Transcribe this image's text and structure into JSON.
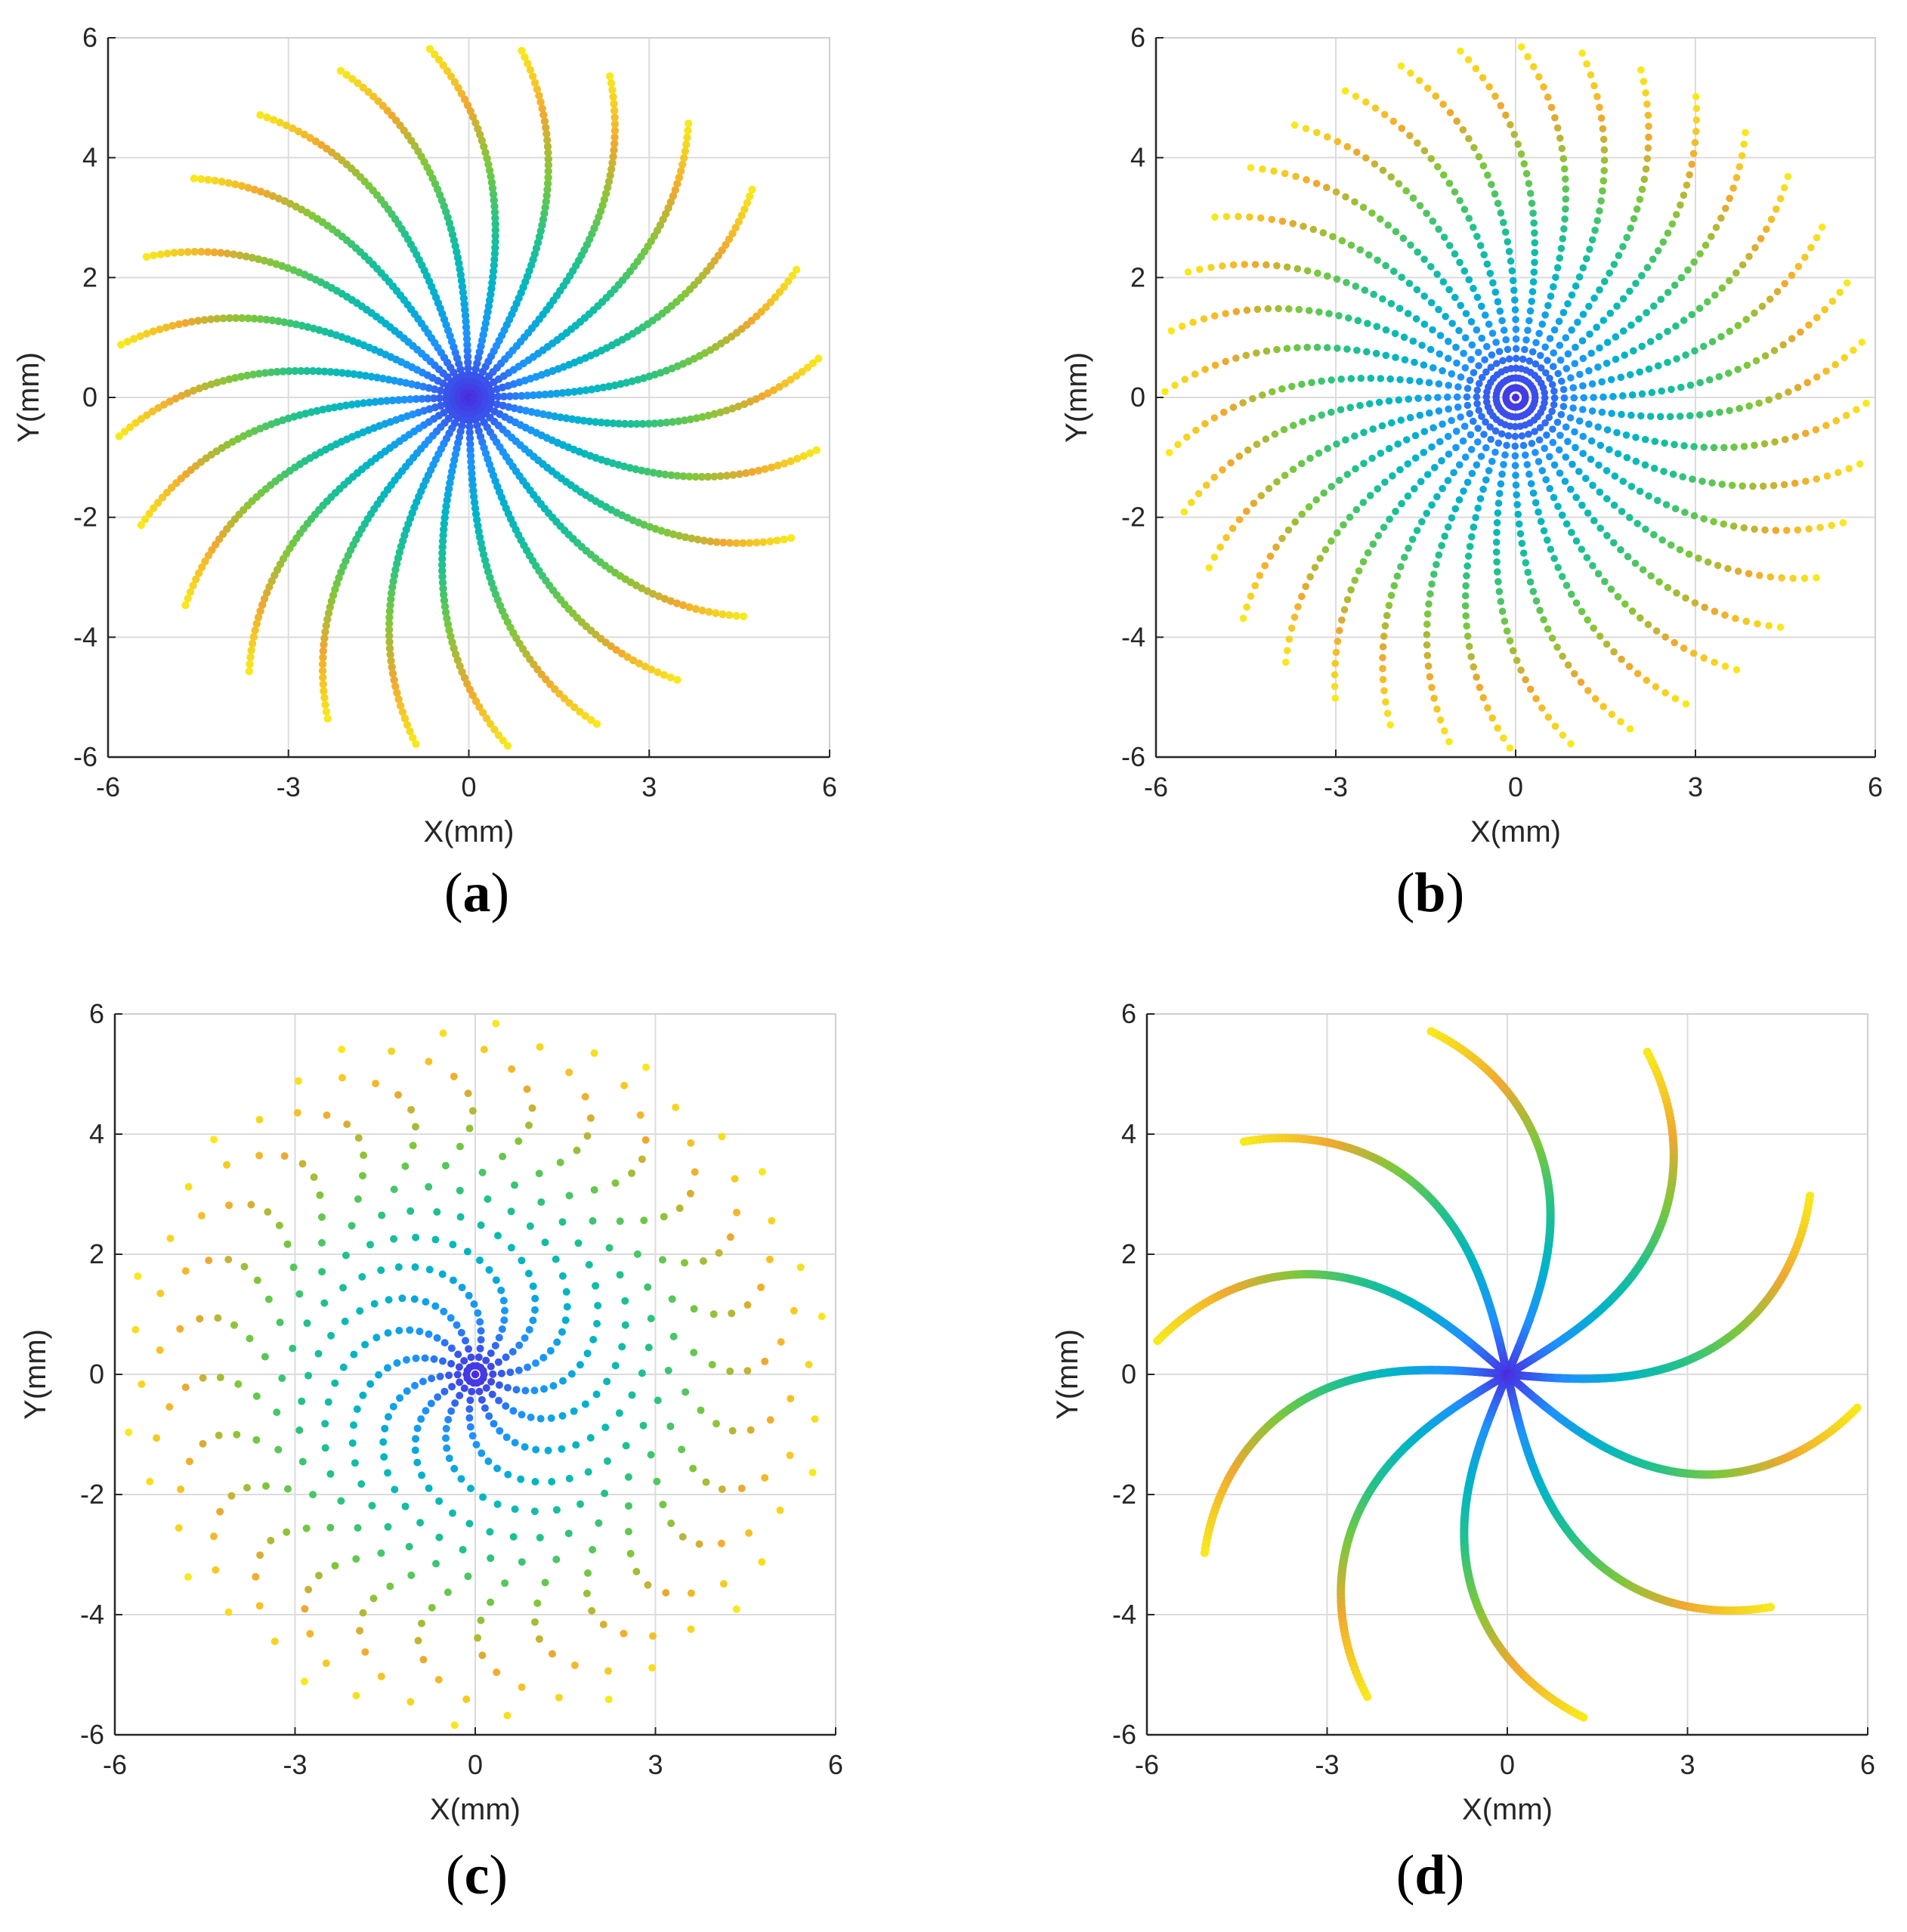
{
  "chart_data": [
    {
      "type": "scatter",
      "panel_label": "a",
      "xlabel": "X(mm)",
      "ylabel": "Y(mm)",
      "xlim": [
        -6,
        6
      ],
      "ylim": [
        -6,
        6
      ],
      "xticks": [
        -6,
        -3,
        0,
        3,
        6
      ],
      "yticks": [
        -6,
        -4,
        -2,
        0,
        2,
        4,
        6
      ],
      "grid": true,
      "pattern": {
        "kind": "spiral-arms",
        "arms": 24,
        "points_per_arm": 60,
        "max_radius_mm": 5.85,
        "twist_rad": 0.35,
        "first_arm_angle_deg": 1.3
      },
      "color_by": "radius",
      "colormap": [
        "#4a2be0",
        "#1e90ff",
        "#00b4c8",
        "#22c28a",
        "#7ac83c",
        "#f0a830",
        "#f8e81c"
      ]
    },
    {
      "type": "scatter",
      "panel_label": "b",
      "xlabel": "X(mm)",
      "ylabel": "Y(mm)",
      "xlim": [
        -6,
        6
      ],
      "ylim": [
        -6,
        6
      ],
      "xticks": [
        -6,
        -3,
        0,
        3,
        6
      ],
      "yticks": [
        -6,
        -4,
        -2,
        0,
        2,
        4,
        6
      ],
      "grid": true,
      "pattern": {
        "kind": "spiral-arms",
        "arms": 36,
        "points_per_arm": 36,
        "max_radius_mm": 5.85,
        "twist_rad": 0.35,
        "first_arm_angle_deg": -1.0
      },
      "color_by": "radius",
      "colormap": [
        "#4a2be0",
        "#1e90ff",
        "#00b4c8",
        "#22c28a",
        "#7ac83c",
        "#f0a830",
        "#f8e81c"
      ]
    },
    {
      "type": "scatter",
      "panel_label": "c",
      "xlabel": "X(mm)",
      "ylabel": "Y(mm)",
      "xlim": [
        -6,
        6
      ],
      "ylim": [
        -6,
        6
      ],
      "xticks": [
        -6,
        -3,
        0,
        3,
        6
      ],
      "yticks": [
        -6,
        -4,
        -2,
        0,
        2,
        4,
        6
      ],
      "grid": true,
      "pattern": {
        "kind": "spiral-arms",
        "arms": 14,
        "points_per_arm": 40,
        "max_radius_mm": 5.85,
        "twist_rad": 6.0,
        "first_arm_angle_deg": 0
      },
      "color_by": "radius",
      "colormap": [
        "#4a2be0",
        "#1e90ff",
        "#00b4c8",
        "#22c28a",
        "#7ac83c",
        "#f0a830",
        "#f8e81c"
      ]
    },
    {
      "type": "scatter",
      "panel_label": "d",
      "xlabel": "X(mm)",
      "ylabel": "Y(mm)",
      "xlim": [
        -6,
        6
      ],
      "ylim": [
        -6,
        6
      ],
      "xticks": [
        -6,
        -3,
        0,
        3,
        6
      ],
      "yticks": [
        -6,
        -4,
        -2,
        0,
        2,
        4,
        6
      ],
      "grid": true,
      "pattern": {
        "kind": "spiral-arms",
        "arms": 10,
        "points_per_arm": 140,
        "max_radius_mm": 5.85,
        "twist_rad": 0.62,
        "first_arm_angle_deg": -5.0
      },
      "color_by": "radius",
      "colormap": [
        "#4a2be0",
        "#1e90ff",
        "#00b4c8",
        "#22c28a",
        "#7ac83c",
        "#f0a830",
        "#f8e81c"
      ]
    }
  ]
}
